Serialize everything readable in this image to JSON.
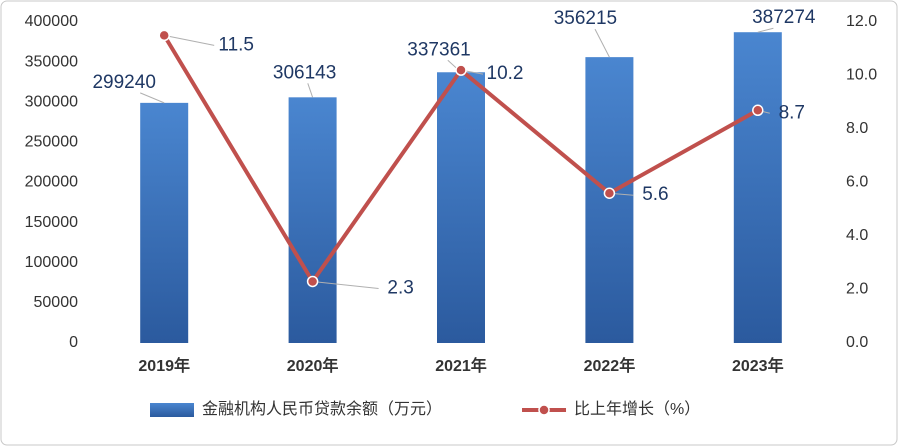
{
  "chart_data": {
    "type": "bar",
    "categories": [
      "2019年",
      "2020年",
      "2021年",
      "2022年",
      "2023年"
    ],
    "series": [
      {
        "name": "金融机构人民币贷款余额（万元）",
        "color": "#3a72c0",
        "values": [
          299240,
          306143,
          337361,
          356215,
          387274
        ]
      },
      {
        "name": "比上年增长（%）",
        "type": "line",
        "axis": "y2",
        "color": "#c0504d",
        "values": [
          11.5,
          2.3,
          10.2,
          5.6,
          8.7
        ]
      }
    ],
    "ylim": [
      0,
      400000
    ],
    "yticks": [
      0,
      50000,
      100000,
      150000,
      200000,
      250000,
      300000,
      350000,
      400000
    ],
    "y2lim": [
      0,
      12
    ],
    "y2ticks": [
      {
        "value": 0,
        "label": "0.0"
      },
      {
        "value": 2,
        "label": "2.0"
      },
      {
        "value": 4,
        "label": "4.0"
      },
      {
        "value": 6,
        "label": "6.0"
      },
      {
        "value": 8,
        "label": "8.0"
      },
      {
        "value": 10,
        "label": "10.0"
      },
      {
        "value": 12,
        "label": "12.0"
      }
    ],
    "legend": "bottom"
  }
}
